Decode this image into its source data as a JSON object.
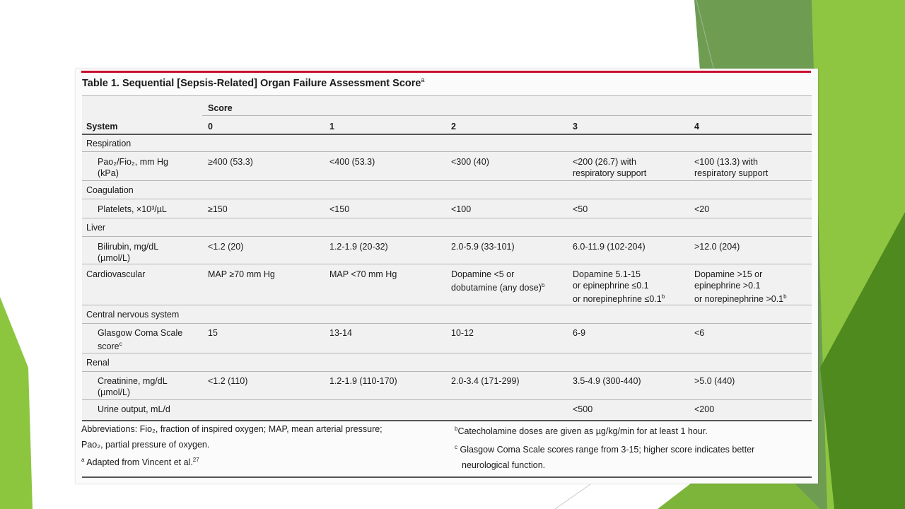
{
  "title": "Table 1. Sequential [Sepsis-Related] Organ Failure Assessment Score",
  "title_sup": "a",
  "header": {
    "score_label": "Score",
    "system_label": "System",
    "scores": [
      "0",
      "1",
      "2",
      "3",
      "4"
    ]
  },
  "rows": {
    "respiration": {
      "label": "Respiration"
    },
    "pao2": {
      "label_line1": "Pao₂/Fio₂, mm Hg",
      "label_line2": "(kPa)",
      "s0": "≥400 (53.3)",
      "s1": "<400 (53.3)",
      "s2": "<300 (40)",
      "s3_line1": "<200 (26.7) with",
      "s3_line2": "respiratory support",
      "s4_line1": "<100 (13.3) with",
      "s4_line2": "respiratory support"
    },
    "coagulation": {
      "label": "Coagulation"
    },
    "platelets": {
      "label": "Platelets, ×10³/µL",
      "s0": "≥150",
      "s1": "<150",
      "s2": "<100",
      "s3": "<50",
      "s4": "<20"
    },
    "liver": {
      "label": "Liver"
    },
    "bilirubin": {
      "label_line1": "Bilirubin, mg/dL",
      "label_line2": "(µmol/L)",
      "s0": "<1.2 (20)",
      "s1": "1.2-1.9 (20-32)",
      "s2": "2.0-5.9 (33-101)",
      "s3": "6.0-11.9 (102-204)",
      "s4": ">12.0 (204)"
    },
    "cardio": {
      "label": "Cardiovascular",
      "s0": "MAP ≥70 mm Hg",
      "s1": "MAP <70 mm Hg",
      "s2_line1": "Dopamine <5 or",
      "s2_line2": "dobutamine (any dose)",
      "s3_line1": "Dopamine 5.1-15",
      "s3_line2": "or epinephrine ≤0.1",
      "s3_line3": "or norepinephrine ≤0.1",
      "s4_line1": "Dopamine >15 or",
      "s4_line2": "epinephrine >0.1",
      "s4_line3": "or norepinephrine >0.1",
      "sup": "b"
    },
    "cns": {
      "label": "Central nervous system"
    },
    "gcs": {
      "label_line1": "Glasgow Coma Scale",
      "label_line2": "score",
      "label_sup": "c",
      "s0": "15",
      "s1": "13-14",
      "s2": "10-12",
      "s3": "6-9",
      "s4": "<6"
    },
    "renal": {
      "label": "Renal"
    },
    "creatinine": {
      "label_line1": "Creatinine, mg/dL",
      "label_line2": "(µmol/L)",
      "s0": "<1.2 (110)",
      "s1": "1.2-1.9 (110-170)",
      "s2": "2.0-3.4 (171-299)",
      "s3": "3.5-4.9 (300-440)",
      "s4": ">5.0 (440)"
    },
    "urine": {
      "label": "Urine output, mL/d",
      "s3": "<500",
      "s4": "<200"
    }
  },
  "footnotes": {
    "abbrev_line1": "Abbreviations: Fio₂, fraction of inspired oxygen; MAP, mean arterial pressure;",
    "abbrev_line2": "Pao₂, partial pressure of oxygen.",
    "a_sup": "a",
    "a_text": " Adapted from Vincent et al.",
    "a_ref": "27",
    "b_sup": "b",
    "b_text": "Catecholamine doses are given as µg/kg/min for at least 1 hour.",
    "c_sup": "c",
    "c_text_line1": " Glasgow Coma Scale scores range from 3-15; higher score indicates better",
    "c_text_line2": "neurological function."
  },
  "colors": {
    "accent_red": "#c8102e",
    "green_dark": "#4f8a1f",
    "green_light": "#8cc63f",
    "green_muted": "#6a9a4c"
  }
}
